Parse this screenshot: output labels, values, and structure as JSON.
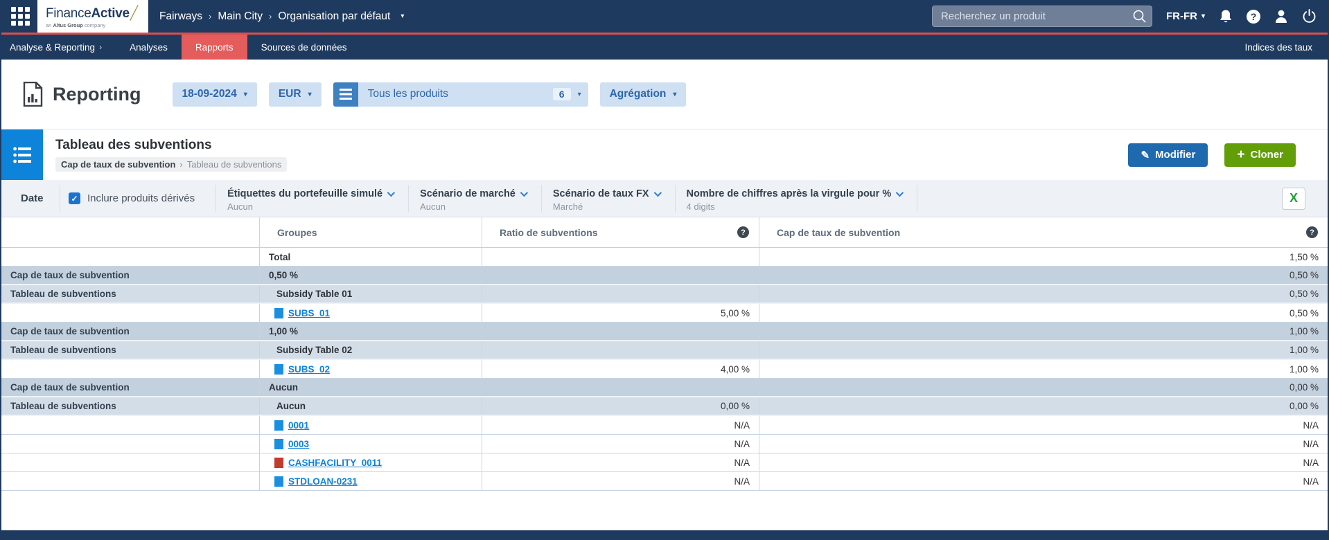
{
  "topbar": {
    "logo": {
      "finance": "Finance",
      "active": "Active",
      "slash": "/",
      "tagline_prefix": "an ",
      "tagline_bold": "Altus Group",
      "tagline_suffix": " company"
    },
    "breadcrumb": [
      "Fairways",
      "Main City",
      "Organisation par défaut"
    ],
    "search_placeholder": "Recherchez un produit",
    "locale": "FR-FR"
  },
  "subnav": {
    "items": [
      {
        "label": "Analyse & Reporting",
        "has_chevron": true,
        "active": false
      },
      {
        "label": "Analyses",
        "has_chevron": false,
        "active": false
      },
      {
        "label": "Rapports",
        "has_chevron": false,
        "active": true
      },
      {
        "label": "Sources de données",
        "has_chevron": false,
        "active": false
      }
    ],
    "right_item": "Indices des taux"
  },
  "toolbar": {
    "title": "Reporting",
    "date": "18-09-2024",
    "currency": "EUR",
    "products_label": "Tous les produits",
    "products_count": "6",
    "aggregation_label": "Agrégation"
  },
  "section": {
    "title": "Tableau des subventions",
    "breadcrumb_primary": "Cap de taux de subvention",
    "breadcrumb_separator": "›",
    "breadcrumb_secondary": "Tableau de subventions",
    "edit_label": "Modifier",
    "clone_label": "Cloner"
  },
  "filters": {
    "date_label": "Date",
    "derived_label": "Inclure produits dérivés",
    "derived_checked": true,
    "dropdowns": [
      {
        "label": "Étiquettes du portefeuille simulé",
        "value": "Aucun"
      },
      {
        "label": "Scénario de marché",
        "value": "Aucun"
      },
      {
        "label": "Scénario de taux FX",
        "value": "Marché"
      },
      {
        "label": "Nombre de chiffres après la virgule pour %",
        "value": "4 digits"
      }
    ],
    "export_glyph": "X"
  },
  "table": {
    "columns": {
      "groupes": "Groupes",
      "ratio": "Ratio de subventions",
      "cap": "Cap de taux de subvention"
    },
    "rows": [
      {
        "label": "",
        "group": "Total",
        "ratio": "",
        "cap": "1,50 %",
        "style": "white",
        "indent": 0,
        "link": false,
        "marker": ""
      },
      {
        "label": "Cap de taux de subvention",
        "group": "0,50 %",
        "ratio": "",
        "cap": "0,50 %",
        "style": "dark",
        "indent": 0,
        "link": false,
        "marker": ""
      },
      {
        "label": "Tableau de subventions",
        "group": "Subsidy Table 01",
        "ratio": "",
        "cap": "0,50 %",
        "style": "light",
        "indent": 1,
        "link": false,
        "marker": ""
      },
      {
        "label": "",
        "group": "SUBS_01",
        "ratio": "5,00 %",
        "cap": "0,50 %",
        "style": "white",
        "indent": 2,
        "link": true,
        "marker": "blue"
      },
      {
        "label": "Cap de taux de subvention",
        "group": "1,00 %",
        "ratio": "",
        "cap": "1,00 %",
        "style": "dark",
        "indent": 0,
        "link": false,
        "marker": ""
      },
      {
        "label": "Tableau de subventions",
        "group": "Subsidy Table 02",
        "ratio": "",
        "cap": "1,00 %",
        "style": "light",
        "indent": 1,
        "link": false,
        "marker": ""
      },
      {
        "label": "",
        "group": "SUBS_02",
        "ratio": "4,00 %",
        "cap": "1,00 %",
        "style": "white",
        "indent": 2,
        "link": true,
        "marker": "blue"
      },
      {
        "label": "Cap de taux de subvention",
        "group": "Aucun",
        "ratio": "",
        "cap": "0,00 %",
        "style": "dark",
        "indent": 0,
        "link": false,
        "marker": ""
      },
      {
        "label": "Tableau de subventions",
        "group": "Aucun",
        "ratio": "0,00 %",
        "cap": "0,00 %",
        "style": "light",
        "indent": 1,
        "link": false,
        "marker": ""
      },
      {
        "label": "",
        "group": "0001",
        "ratio": "N/A",
        "cap": "N/A",
        "style": "white",
        "indent": 2,
        "link": true,
        "marker": "blue"
      },
      {
        "label": "",
        "group": "0003",
        "ratio": "N/A",
        "cap": "N/A",
        "style": "white",
        "indent": 2,
        "link": true,
        "marker": "blue"
      },
      {
        "label": "",
        "group": "CASHFACILITY_0011",
        "ratio": "N/A",
        "cap": "N/A",
        "style": "white",
        "indent": 2,
        "link": true,
        "marker": "red"
      },
      {
        "label": "",
        "group": "STDLOAN-0231",
        "ratio": "N/A",
        "cap": "N/A",
        "style": "white",
        "indent": 2,
        "link": true,
        "marker": "blue"
      }
    ]
  },
  "colors": {
    "navy": "#1f3a5f",
    "accent_red": "#e45c5c",
    "red_line": "#d94f4f",
    "toolbar_button_bg": "#cfe0f3",
    "toolbar_button_text": "#2d66a9",
    "section_blue": "#0d84da",
    "edit_blue": "#1f69af",
    "clone_green": "#619e08",
    "link_blue": "#0f82d9",
    "marker_blue": "#1a8fe0",
    "marker_red": "#c23b2e",
    "row_dark": "#c3d0de",
    "row_light": "#d3dde7",
    "excel_green": "#21a038"
  }
}
